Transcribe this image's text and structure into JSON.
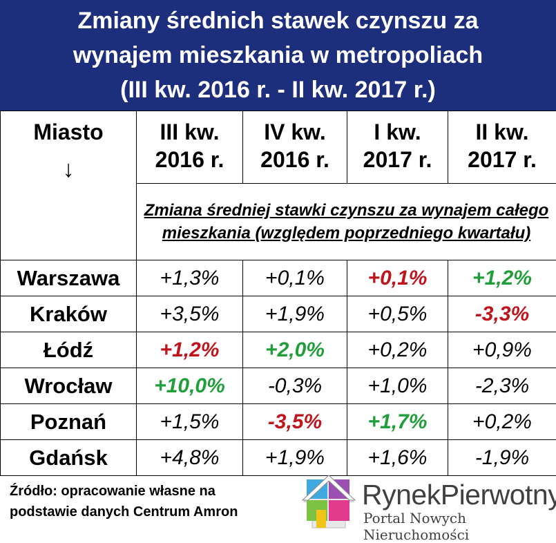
{
  "title": {
    "line1": "Zmiany średnich stawek czynszu za",
    "line2": "wynajem mieszkania w metropoliach",
    "line3": "(III kw. 2016 r. - II kw. 2017 r.)"
  },
  "table": {
    "city_header": "Miasto",
    "city_arrow": "↓",
    "columns": [
      {
        "line1": "III kw.",
        "line2": "2016 r."
      },
      {
        "line1": "IV kw.",
        "line2": "2016 r."
      },
      {
        "line1": "I kw.",
        "line2": "2017 r."
      },
      {
        "line1": "II kw.",
        "line2": "2017 r."
      }
    ],
    "subheader": "Zmiana średniej stawki czynszu za wynajem całego mieszkania (względem poprzedniego kwartału)",
    "rows": [
      {
        "city": "Warszawa",
        "values": [
          {
            "text": "+1,3%",
            "style": "normal"
          },
          {
            "text": "+0,1%",
            "style": "normal"
          },
          {
            "text": "+0,1%",
            "style": "red"
          },
          {
            "text": "+1,2%",
            "style": "green"
          }
        ]
      },
      {
        "city": "Kraków",
        "values": [
          {
            "text": "+3,5%",
            "style": "normal"
          },
          {
            "text": "+1,9%",
            "style": "normal"
          },
          {
            "text": "+0,5%",
            "style": "normal"
          },
          {
            "text": "-3,3%",
            "style": "red"
          }
        ]
      },
      {
        "city": "Łódź",
        "values": [
          {
            "text": "+1,2%",
            "style": "red"
          },
          {
            "text": "+2,0%",
            "style": "green"
          },
          {
            "text": "+0,2%",
            "style": "normal"
          },
          {
            "text": "+0,9%",
            "style": "normal"
          }
        ]
      },
      {
        "city": "Wrocław",
        "values": [
          {
            "text": "+10,0%",
            "style": "green"
          },
          {
            "text": "-0,3%",
            "style": "normal"
          },
          {
            "text": "+1,0%",
            "style": "normal"
          },
          {
            "text": "-2,3%",
            "style": "normal"
          }
        ]
      },
      {
        "city": "Poznań",
        "values": [
          {
            "text": "+1,5%",
            "style": "normal"
          },
          {
            "text": "-3,5%",
            "style": "red"
          },
          {
            "text": "+1,7%",
            "style": "green"
          },
          {
            "text": "+0,2%",
            "style": "normal"
          }
        ]
      },
      {
        "city": "Gdańsk",
        "values": [
          {
            "text": "+4,8%",
            "style": "normal"
          },
          {
            "text": "+1,9%",
            "style": "normal"
          },
          {
            "text": "+1,6%",
            "style": "normal"
          },
          {
            "text": "-1,9%",
            "style": "normal"
          }
        ]
      }
    ]
  },
  "footer": {
    "source_line1": "Źródło: opracowanie własne na",
    "source_line2": "podstawie danych Centrum Amron",
    "logo_brand_part1": "Rynek",
    "logo_brand_part2": "Pierwotny",
    "logo_tagline": "Portal Nowych Nieruchomości",
    "logo_icon": "house-puzzle-icon"
  },
  "colors": {
    "title_bg": "#1c2e7c",
    "negative_highlight": "#c0141c",
    "positive_highlight": "#1f9e3a"
  }
}
